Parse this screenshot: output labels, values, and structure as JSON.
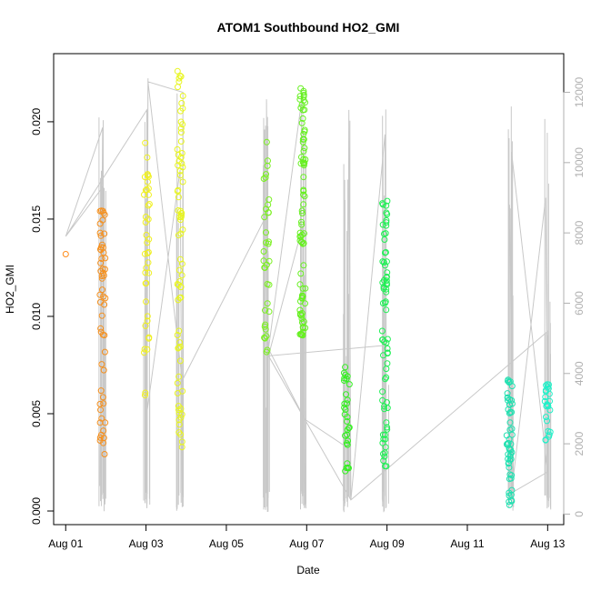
{
  "chart_data": {
    "type": "scatter",
    "title": "ATOM1 Southbound HO2_GMI",
    "xlabel": "Date",
    "ylabel": "HO2_GMI",
    "x_ticks": [
      "Aug 01",
      "Aug 03",
      "Aug 05",
      "Aug 07",
      "Aug 09",
      "Aug 11",
      "Aug 13"
    ],
    "x_tick_days": [
      1,
      3,
      5,
      7,
      9,
      11,
      13
    ],
    "xlim": [
      0.7,
      13.4
    ],
    "y_ticks": [
      "0.000",
      "0.005",
      "0.010",
      "0.015",
      "0.020"
    ],
    "y_tick_values": [
      0,
      0.005,
      0.01,
      0.015,
      0.02
    ],
    "ylim": [
      -0.0007,
      0.0235
    ],
    "y2_ticks": [
      "0",
      "2000",
      "4000",
      "6000",
      "8000",
      "10000",
      "12000"
    ],
    "y2_tick_values": [
      0,
      2000,
      4000,
      6000,
      8000,
      10000,
      12000
    ],
    "y2lim": [
      -300,
      13100
    ],
    "altitude_line_color": "#c8c8c8",
    "clusters": [
      {
        "day": 1.0,
        "color": "#ff8c1a",
        "min": 0.0132,
        "max": 0.0132,
        "n": 1
      },
      {
        "day": 1.92,
        "color": "#f5901e",
        "min": 0.0029,
        "max": 0.016,
        "n": 55
      },
      {
        "day": 3.02,
        "color": "#f0f020",
        "min": 0.0055,
        "max": 0.019,
        "n": 40
      },
      {
        "day": 3.85,
        "color": "#e8f520",
        "min": 0.003,
        "max": 0.0227,
        "n": 75
      },
      {
        "day": 6.0,
        "color": "#7af020",
        "min": 0.0075,
        "max": 0.019,
        "n": 35
      },
      {
        "day": 6.9,
        "color": "#66f020",
        "min": 0.009,
        "max": 0.0221,
        "n": 80
      },
      {
        "day": 8.0,
        "color": "#33f020",
        "min": 0.002,
        "max": 0.0075,
        "n": 30
      },
      {
        "day": 8.95,
        "color": "#20f055",
        "min": 0.0023,
        "max": 0.0165,
        "n": 70
      },
      {
        "day": 12.05,
        "color": "#20e0b0",
        "min": 0.0001,
        "max": 0.0068,
        "n": 55
      },
      {
        "day": 13.0,
        "color": "#20f0c8",
        "min": 0.0036,
        "max": 0.0068,
        "n": 25
      }
    ],
    "altitude_path": [
      [
        1.0,
        7900
      ],
      [
        1.92,
        9300
      ],
      [
        1.85,
        800
      ],
      [
        1.92,
        11000
      ],
      [
        1.0,
        7900
      ],
      [
        3.02,
        11500
      ],
      [
        3.02,
        200
      ],
      [
        3.05,
        12400
      ],
      [
        3.0,
        2700
      ],
      [
        3.85,
        9800
      ],
      [
        3.9,
        200
      ],
      [
        3.92,
        12000
      ],
      [
        3.05,
        12300
      ],
      [
        3.9,
        3800
      ],
      [
        6.0,
        8500
      ],
      [
        6.02,
        200
      ],
      [
        6.0,
        11800
      ],
      [
        6.05,
        4500
      ],
      [
        6.9,
        8200
      ],
      [
        6.95,
        200
      ],
      [
        6.9,
        12000
      ],
      [
        6.05,
        4700
      ],
      [
        6.95,
        2700
      ],
      [
        8.0,
        1900
      ],
      [
        8.02,
        200
      ],
      [
        8.05,
        11500
      ],
      [
        8.1,
        400
      ],
      [
        8.95,
        10800
      ],
      [
        8.98,
        200
      ],
      [
        8.95,
        4800
      ],
      [
        6.05,
        4500
      ],
      [
        8.1,
        400
      ],
      [
        13.0,
        5200
      ],
      [
        13.02,
        200
      ],
      [
        12.95,
        9000
      ],
      [
        12.1,
        600
      ],
      [
        13.0,
        1200
      ],
      [
        12.1,
        10300
      ],
      [
        12.15,
        200
      ],
      [
        12.05,
        8800
      ]
    ]
  }
}
